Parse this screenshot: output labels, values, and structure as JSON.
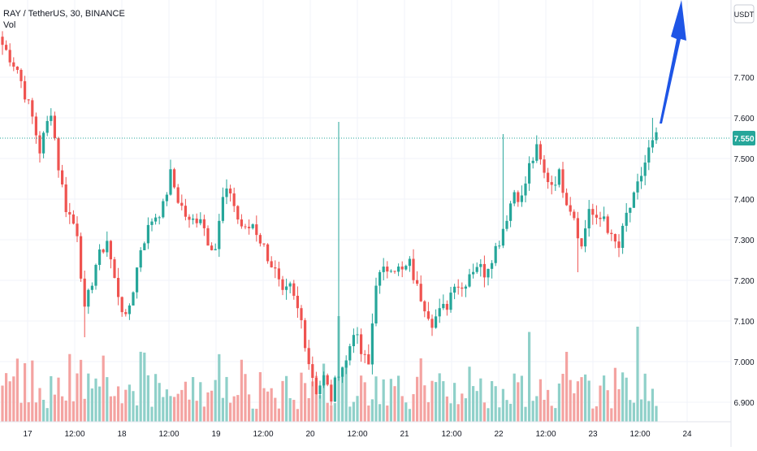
{
  "header": {
    "symbol_line": "RAY / TetherUS, 30, BINANCE",
    "volume_label": "Vol"
  },
  "currency_badge": "USDT",
  "last_price_label": "7.550",
  "colors": {
    "up": "#26a69a",
    "down": "#ef5350",
    "vol_up": "#8fd0c9",
    "vol_down": "#f4a3a1",
    "arrow": "#1e55e6",
    "price_line": "#26a69a"
  },
  "chart_data": {
    "type": "candlestick",
    "y_axis": {
      "ylim": [
        6.88,
        7.86
      ],
      "ticks": [
        "7.700",
        "7.600",
        "7.500",
        "7.400",
        "7.300",
        "7.200",
        "7.100",
        "7.000",
        "6.900"
      ]
    },
    "x_axis": {
      "ticks": [
        "17",
        "12:00",
        "18",
        "12:00",
        "19",
        "12:00",
        "20",
        "12:00",
        "21",
        "12:00",
        "22",
        "12:00",
        "23",
        "12:00",
        "24"
      ]
    },
    "last_price": 7.55,
    "annotation": "blue-up-arrow",
    "close_path": [
      [
        0,
        7.78
      ],
      [
        4,
        7.72
      ],
      [
        8,
        7.6
      ],
      [
        10,
        7.52
      ],
      [
        13,
        7.62
      ],
      [
        15,
        7.48
      ],
      [
        17,
        7.38
      ],
      [
        20,
        7.32
      ],
      [
        22,
        7.12
      ],
      [
        25,
        7.24
      ],
      [
        28,
        7.3
      ],
      [
        30,
        7.2
      ],
      [
        33,
        7.1
      ],
      [
        35,
        7.18
      ],
      [
        37,
        7.28
      ],
      [
        40,
        7.35
      ],
      [
        43,
        7.38
      ],
      [
        45,
        7.46
      ],
      [
        47,
        7.4
      ],
      [
        50,
        7.34
      ],
      [
        53,
        7.36
      ],
      [
        55,
        7.3
      ],
      [
        57,
        7.28
      ],
      [
        59,
        7.4
      ],
      [
        61,
        7.42
      ],
      [
        63,
        7.35
      ],
      [
        65,
        7.32
      ],
      [
        67,
        7.34
      ],
      [
        70,
        7.28
      ],
      [
        73,
        7.22
      ],
      [
        75,
        7.16
      ],
      [
        77,
        7.18
      ],
      [
        80,
        7.1
      ],
      [
        82,
        7.0
      ],
      [
        84,
        6.93
      ],
      [
        86,
        6.96
      ],
      [
        88,
        6.91
      ],
      [
        90,
        6.98
      ],
      [
        92,
        7.0
      ],
      [
        94,
        7.08
      ],
      [
        96,
        7.02
      ],
      [
        98,
        6.99
      ],
      [
        100,
        7.2
      ],
      [
        102,
        7.22
      ],
      [
        104,
        7.24
      ],
      [
        107,
        7.22
      ],
      [
        109,
        7.24
      ],
      [
        111,
        7.18
      ],
      [
        113,
        7.14
      ],
      [
        115,
        7.1
      ],
      [
        117,
        7.12
      ],
      [
        119,
        7.14
      ],
      [
        121,
        7.2
      ],
      [
        123,
        7.18
      ],
      [
        125,
        7.22
      ],
      [
        127,
        7.24
      ],
      [
        129,
        7.22
      ],
      [
        131,
        7.26
      ],
      [
        133,
        7.3
      ],
      [
        135,
        7.36
      ],
      [
        137,
        7.42
      ],
      [
        139,
        7.4
      ],
      [
        141,
        7.48
      ],
      [
        143,
        7.52
      ],
      [
        145,
        7.46
      ],
      [
        147,
        7.44
      ],
      [
        149,
        7.46
      ],
      [
        151,
        7.4
      ],
      [
        153,
        7.36
      ],
      [
        155,
        7.28
      ],
      [
        157,
        7.38
      ],
      [
        159,
        7.34
      ],
      [
        161,
        7.36
      ],
      [
        163,
        7.3
      ],
      [
        165,
        7.28
      ],
      [
        167,
        7.36
      ],
      [
        169,
        7.4
      ],
      [
        171,
        7.46
      ],
      [
        173,
        7.52
      ],
      [
        175,
        7.55
      ]
    ],
    "spikes": [
      {
        "x": 90,
        "high": 7.59
      },
      {
        "x": 22,
        "low": 7.06
      },
      {
        "x": 134,
        "high": 7.56
      },
      {
        "x": 154,
        "low": 7.22
      },
      {
        "x": 174,
        "high": 7.6
      }
    ],
    "volume_peaks": [
      {
        "x": 90,
        "v": 1.0
      },
      {
        "x": 170,
        "v": 0.9
      },
      {
        "x": 141,
        "v": 0.85
      },
      {
        "x": 112,
        "v": 0.6
      },
      {
        "x": 86,
        "v": 0.55
      }
    ]
  }
}
